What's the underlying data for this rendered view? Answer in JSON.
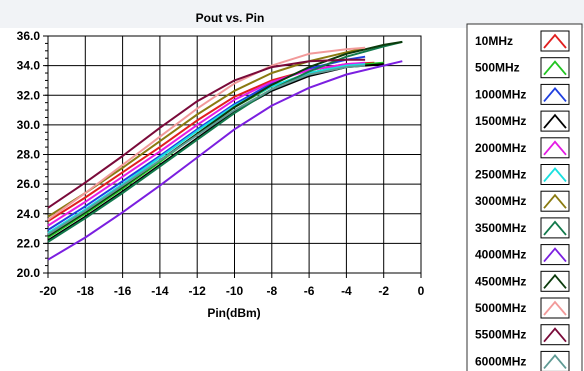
{
  "chart_data": {
    "type": "line",
    "title": "Pout vs. Pin",
    "xlabel": "Pin(dBm)",
    "ylabel": "",
    "xlim": [
      -20,
      0
    ],
    "ylim": [
      20,
      36
    ],
    "x_ticks": [
      "-20",
      "-18",
      "-16",
      "-14",
      "-12",
      "-10",
      "-8",
      "-6",
      "-4",
      "-2",
      "0"
    ],
    "y_ticks": [
      "20.0",
      "22.0",
      "24.0",
      "26.0",
      "28.0",
      "30.0",
      "32.0",
      "34.0",
      "36.0"
    ],
    "grid": true,
    "legend_position": "right",
    "series": [
      {
        "name": "10MHz",
        "color": "#e11f1f",
        "points": [
          [
            -20,
            23.5
          ],
          [
            -18,
            25.1
          ],
          [
            -16,
            26.8
          ],
          [
            -14,
            28.5
          ],
          [
            -12,
            30.3
          ],
          [
            -10,
            31.9
          ],
          [
            -8,
            33.0
          ],
          [
            -6,
            33.7
          ],
          [
            -4,
            34.1
          ],
          [
            -2.5,
            34.2
          ]
        ]
      },
      {
        "name": "500MHz",
        "color": "#22c422",
        "points": [
          [
            -20,
            22.4
          ],
          [
            -18,
            24.0
          ],
          [
            -16,
            25.7
          ],
          [
            -14,
            27.5
          ],
          [
            -12,
            29.4
          ],
          [
            -10,
            31.2
          ],
          [
            -8,
            32.6
          ],
          [
            -6,
            33.5
          ],
          [
            -4,
            34.0
          ],
          [
            -2,
            34.2
          ]
        ]
      },
      {
        "name": "1000MHz",
        "color": "#1f3fe0",
        "points": [
          [
            -20,
            22.9
          ],
          [
            -18,
            24.5
          ],
          [
            -16,
            26.2
          ],
          [
            -14,
            27.9
          ],
          [
            -12,
            29.7
          ],
          [
            -10,
            31.4
          ],
          [
            -8,
            32.8
          ],
          [
            -6,
            33.8
          ],
          [
            -4,
            34.4
          ],
          [
            -3,
            34.6
          ]
        ]
      },
      {
        "name": "1500MHz",
        "color": "#000000",
        "points": [
          [
            -20,
            22.2
          ],
          [
            -18,
            23.8
          ],
          [
            -16,
            25.5
          ],
          [
            -14,
            27.3
          ],
          [
            -12,
            29.1
          ],
          [
            -10,
            30.9
          ],
          [
            -8,
            32.3
          ],
          [
            -6,
            33.3
          ],
          [
            -4,
            33.9
          ],
          [
            -2,
            34.1
          ]
        ]
      },
      {
        "name": "2000MHz",
        "color": "#e41be4",
        "points": [
          [
            -20,
            23.2
          ],
          [
            -18,
            24.8
          ],
          [
            -16,
            26.5
          ],
          [
            -14,
            28.2
          ],
          [
            -12,
            30.0
          ],
          [
            -10,
            31.7
          ],
          [
            -8,
            32.9
          ],
          [
            -6,
            33.7
          ],
          [
            -4,
            34.1
          ],
          [
            -3,
            34.2
          ]
        ]
      },
      {
        "name": "2500MHz",
        "color": "#19e0e0",
        "points": [
          [
            -20,
            22.7
          ],
          [
            -18,
            24.3
          ],
          [
            -16,
            26.0
          ],
          [
            -14,
            27.8
          ],
          [
            -12,
            29.6
          ],
          [
            -10,
            31.3
          ],
          [
            -8,
            32.6
          ],
          [
            -6,
            33.5
          ],
          [
            -4,
            34.0
          ],
          [
            -3,
            34.1
          ]
        ]
      },
      {
        "name": "3000MHz",
        "color": "#8a7a10",
        "points": [
          [
            -20,
            23.8
          ],
          [
            -18,
            25.4
          ],
          [
            -16,
            27.1
          ],
          [
            -14,
            28.9
          ],
          [
            -12,
            30.7
          ],
          [
            -10,
            32.3
          ],
          [
            -8,
            33.5
          ],
          [
            -6,
            34.3
          ],
          [
            -4,
            34.9
          ],
          [
            -3,
            35.2
          ]
        ]
      },
      {
        "name": "3500MHz",
        "color": "#137a4c",
        "points": [
          [
            -20,
            22.1
          ],
          [
            -18,
            23.7
          ],
          [
            -16,
            25.4
          ],
          [
            -14,
            27.2
          ],
          [
            -12,
            29.0
          ],
          [
            -10,
            30.8
          ],
          [
            -8,
            32.4
          ],
          [
            -6,
            33.6
          ],
          [
            -4,
            34.6
          ],
          [
            -2,
            35.3
          ],
          [
            -1,
            35.6
          ]
        ]
      },
      {
        "name": "4000MHz",
        "color": "#7b1fe0",
        "points": [
          [
            -20,
            20.9
          ],
          [
            -18,
            22.4
          ],
          [
            -16,
            24.1
          ],
          [
            -14,
            25.9
          ],
          [
            -12,
            27.8
          ],
          [
            -10,
            29.7
          ],
          [
            -8,
            31.3
          ],
          [
            -6,
            32.5
          ],
          [
            -4,
            33.4
          ],
          [
            -2,
            34.0
          ],
          [
            -1,
            34.3
          ]
        ]
      },
      {
        "name": "4500MHz",
        "color": "#0b3a0b",
        "points": [
          [
            -20,
            22.5
          ],
          [
            -18,
            24.1
          ],
          [
            -16,
            25.8
          ],
          [
            -14,
            27.6
          ],
          [
            -12,
            29.4
          ],
          [
            -10,
            31.2
          ],
          [
            -8,
            32.7
          ],
          [
            -6,
            33.9
          ],
          [
            -4,
            34.8
          ],
          [
            -2,
            35.4
          ],
          [
            -1,
            35.6
          ]
        ]
      },
      {
        "name": "5000MHz",
        "color": "#f29a9a",
        "points": [
          [
            -20,
            23.6
          ],
          [
            -18,
            25.4
          ],
          [
            -16,
            27.3
          ],
          [
            -14,
            29.2
          ],
          [
            -12,
            31.1
          ],
          [
            -10,
            32.8
          ],
          [
            -8,
            34.0
          ],
          [
            -6,
            34.8
          ],
          [
            -4,
            35.1
          ],
          [
            -3,
            35.2
          ]
        ]
      },
      {
        "name": "5500MHz",
        "color": "#7a0a3a",
        "points": [
          [
            -20,
            24.4
          ],
          [
            -18,
            26.1
          ],
          [
            -16,
            27.9
          ],
          [
            -14,
            29.8
          ],
          [
            -12,
            31.6
          ],
          [
            -10,
            33.0
          ],
          [
            -8,
            33.9
          ],
          [
            -6,
            34.3
          ],
          [
            -4,
            34.4
          ],
          [
            -3,
            34.4
          ]
        ]
      },
      {
        "name": "6000MHz",
        "color": "#5f9a94",
        "points": [
          [
            -20,
            22.6
          ],
          [
            -18,
            24.2
          ],
          [
            -16,
            25.9
          ],
          [
            -14,
            27.6
          ],
          [
            -12,
            29.3
          ],
          [
            -10,
            31.0
          ],
          [
            -8,
            32.4
          ],
          [
            -6,
            33.4
          ],
          [
            -4,
            33.9
          ],
          [
            -3,
            34.0
          ]
        ]
      }
    ]
  }
}
